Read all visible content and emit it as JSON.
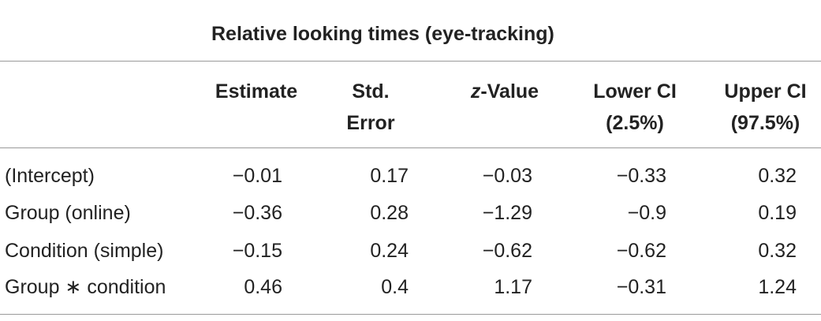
{
  "table": {
    "super_header": "Relative looking times (eye-tracking)",
    "columns": [
      {
        "line1": "Estimate",
        "line2": ""
      },
      {
        "line1": "Std.",
        "line2": "Error"
      },
      {
        "line1_italic": "z",
        "line1": "-Value",
        "line2": ""
      },
      {
        "line1": "Lower CI",
        "line2": "(2.5%)"
      },
      {
        "line1": "Upper CI",
        "line2": "(97.5%)"
      }
    ],
    "rows": [
      {
        "label": "(Intercept)",
        "estimate": "−0.01",
        "std_error": "0.17",
        "z_value": "−0.03",
        "lower_ci": "−0.33",
        "upper_ci": "0.32"
      },
      {
        "label": "Group (online)",
        "estimate": "−0.36",
        "std_error": "0.28",
        "z_value": "−1.29",
        "lower_ci": "−0.9",
        "upper_ci": "0.19"
      },
      {
        "label": "Condition (simple)",
        "estimate": "−0.15",
        "std_error": "0.24",
        "z_value": "−0.62",
        "lower_ci": "−0.62",
        "upper_ci": "0.32"
      },
      {
        "label": "Group ∗ condition",
        "estimate": "0.46",
        "std_error": "0.4",
        "z_value": "1.17",
        "lower_ci": "−0.31",
        "upper_ci": "1.24"
      }
    ]
  }
}
